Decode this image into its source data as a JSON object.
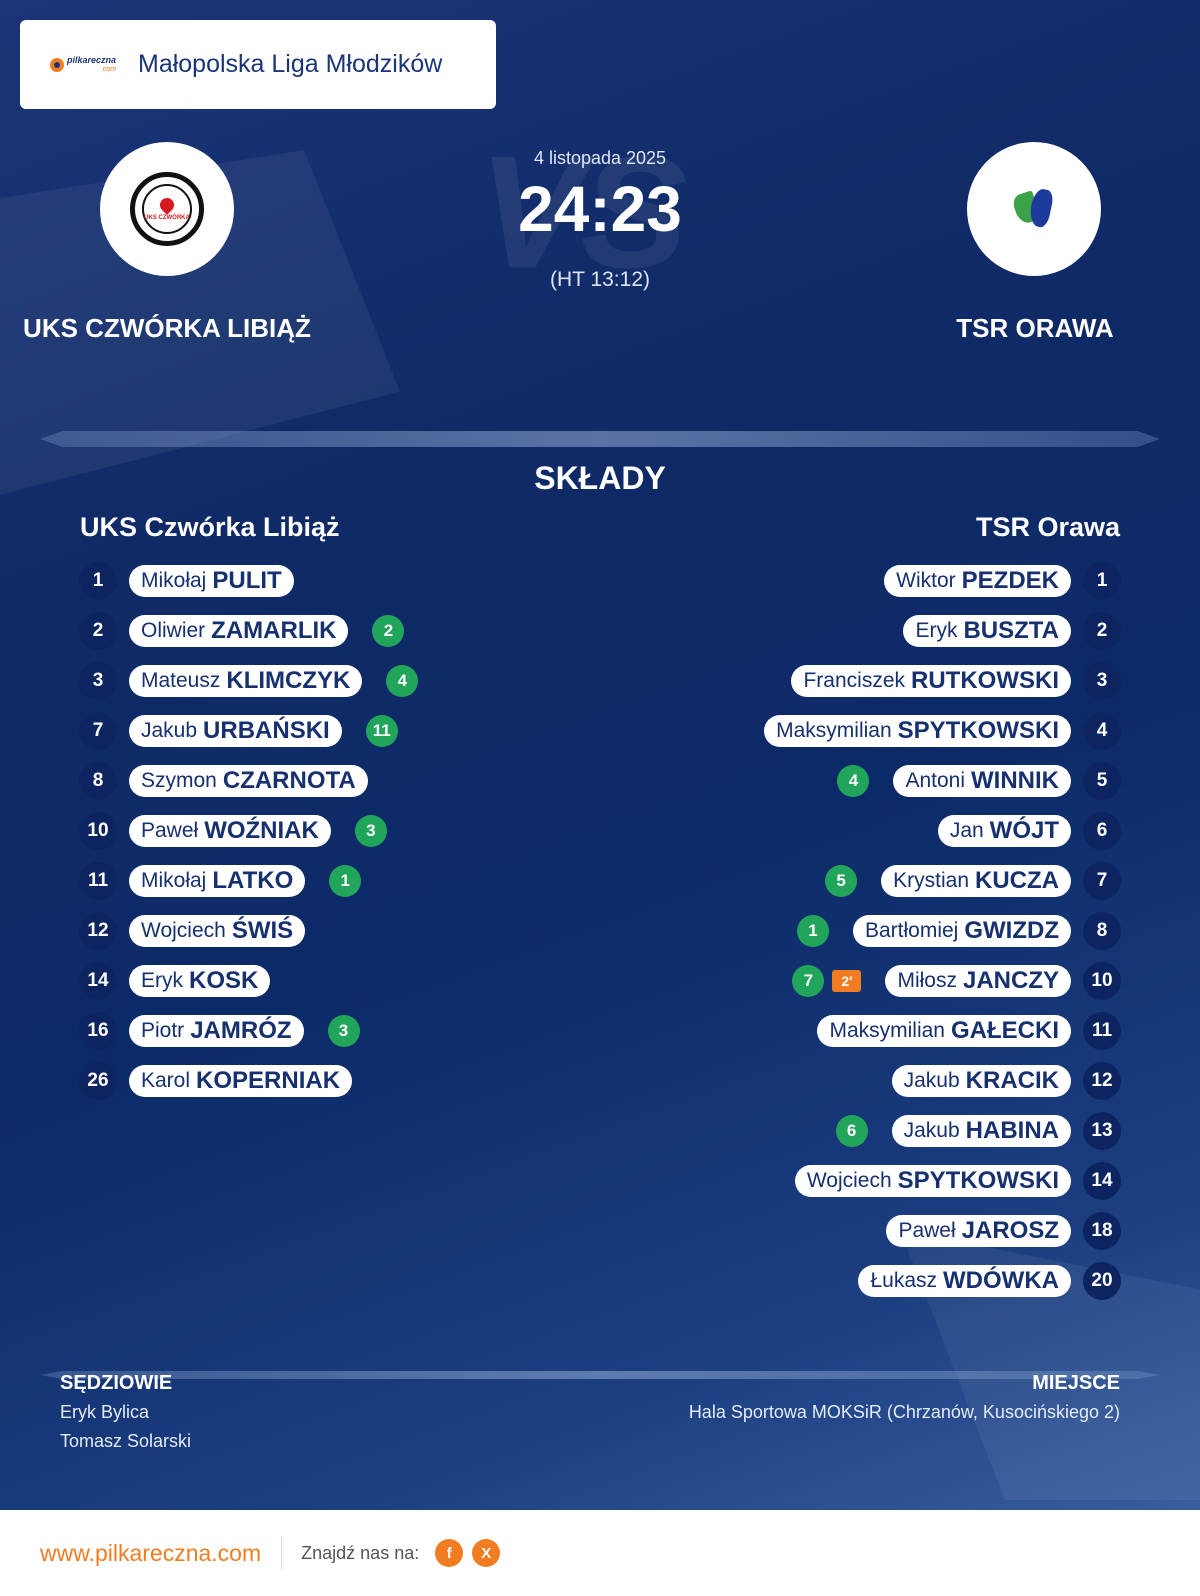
{
  "league": {
    "logo_text": "pilkareczna",
    "logo_sub": ".com",
    "name": "Małopolska Liga Młodzików"
  },
  "match": {
    "date": "4 listopada 2025",
    "score": "24:23",
    "halftime": "(HT 13:12)",
    "vs_text": "VS",
    "home_team": "UKS CZWÓRKA LIBIĄŻ",
    "away_team": "TSR ORAWA",
    "home_crest_text": "UKS CZWÓRKA"
  },
  "lineups": {
    "title": "SKŁADY",
    "home": {
      "name": "UKS Czwórka Libiąż",
      "players": [
        {
          "number": "1",
          "first": "Mikołaj",
          "last": "PULIT",
          "goals": "",
          "penalty": ""
        },
        {
          "number": "2",
          "first": "Oliwier",
          "last": "ZAMARLIK",
          "goals": "2",
          "penalty": ""
        },
        {
          "number": "3",
          "first": "Mateusz",
          "last": "KLIMCZYK",
          "goals": "4",
          "penalty": ""
        },
        {
          "number": "7",
          "first": "Jakub",
          "last": "URBAŃSKI",
          "goals": "11",
          "penalty": ""
        },
        {
          "number": "8",
          "first": "Szymon",
          "last": "CZARNOTA",
          "goals": "",
          "penalty": ""
        },
        {
          "number": "10",
          "first": "Paweł",
          "last": "WOŹNIAK",
          "goals": "3",
          "penalty": ""
        },
        {
          "number": "11",
          "first": "Mikołaj",
          "last": "LATKO",
          "goals": "1",
          "penalty": ""
        },
        {
          "number": "12",
          "first": "Wojciech",
          "last": "ŚWIŚ",
          "goals": "",
          "penalty": ""
        },
        {
          "number": "14",
          "first": "Eryk",
          "last": "KOSK",
          "goals": "",
          "penalty": ""
        },
        {
          "number": "16",
          "first": "Piotr",
          "last": "JAMRÓZ",
          "goals": "3",
          "penalty": ""
        },
        {
          "number": "26",
          "first": "Karol",
          "last": "KOPERNIAK",
          "goals": "",
          "penalty": ""
        }
      ]
    },
    "away": {
      "name": "TSR Orawa",
      "players": [
        {
          "number": "1",
          "first": "Wiktor",
          "last": "PEZDEK",
          "goals": "",
          "penalty": ""
        },
        {
          "number": "2",
          "first": "Eryk",
          "last": "BUSZTA",
          "goals": "",
          "penalty": ""
        },
        {
          "number": "3",
          "first": "Franciszek",
          "last": "RUTKOWSKI",
          "goals": "",
          "penalty": ""
        },
        {
          "number": "4",
          "first": "Maksymilian",
          "last": "SPYTKOWSKI",
          "goals": "",
          "penalty": ""
        },
        {
          "number": "5",
          "first": "Antoni",
          "last": "WINNIK",
          "goals": "4",
          "penalty": ""
        },
        {
          "number": "6",
          "first": "Jan",
          "last": "WÓJT",
          "goals": "",
          "penalty": ""
        },
        {
          "number": "7",
          "first": "Krystian",
          "last": "KUCZA",
          "goals": "5",
          "penalty": ""
        },
        {
          "number": "8",
          "first": "Bartłomiej",
          "last": "GWIZDZ",
          "goals": "1",
          "penalty": ""
        },
        {
          "number": "10",
          "first": "Miłosz",
          "last": "JANCZY",
          "goals": "7",
          "penalty": "2'"
        },
        {
          "number": "11",
          "first": "Maksymilian",
          "last": "GAŁECKI",
          "goals": "",
          "penalty": ""
        },
        {
          "number": "12",
          "first": "Jakub",
          "last": "KRACIK",
          "goals": "",
          "penalty": ""
        },
        {
          "number": "13",
          "first": "Jakub",
          "last": "HABINA",
          "goals": "6",
          "penalty": ""
        },
        {
          "number": "14",
          "first": "Wojciech",
          "last": "SPYTKOWSKI",
          "goals": "",
          "penalty": ""
        },
        {
          "number": "18",
          "first": "Paweł",
          "last": "JAROSZ",
          "goals": "",
          "penalty": ""
        },
        {
          "number": "20",
          "first": "Łukasz",
          "last": "WDÓWKA",
          "goals": "",
          "penalty": ""
        }
      ]
    }
  },
  "officials": {
    "title": "SĘDZIOWIE",
    "referees": [
      "Eryk Bylica",
      "Tomasz Solarski"
    ]
  },
  "venue": {
    "title": "MIEJSCE",
    "name": "Hala Sportowa MOKSiR (Chrzanów, Kusocińskiego 2)"
  },
  "footer": {
    "site": "www.pilkareczna.com",
    "find_us": "Znajdź nas na:",
    "socials": [
      {
        "icon": "facebook-icon",
        "glyph": "f"
      },
      {
        "icon": "x-icon",
        "glyph": "X"
      }
    ]
  },
  "colors": {
    "accent": "#f27c21",
    "navy": "#17306f",
    "goal_badge": "#21a55a",
    "penalty_badge": "#f27c21"
  }
}
